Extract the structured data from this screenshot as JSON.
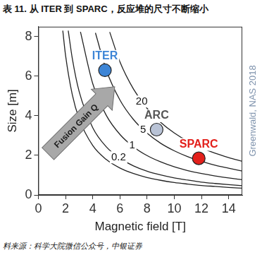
{
  "chart_data": {
    "type": "line",
    "title": "表 11. 从 ITER 到 SPARC，反应堆的尺寸不断缩小",
    "source": "料来源：科学大院微信公众号，中银证券",
    "credit": "Greenwald, NAS 2018",
    "x_label": "Magnetic field [T]",
    "y_label": "Size [m]",
    "xlim": [
      0,
      15
    ],
    "xticks": [
      0,
      2,
      4,
      6,
      8,
      10,
      12,
      14
    ],
    "ylim": [
      0,
      8.5
    ],
    "yticks": [
      0,
      2,
      4,
      6,
      8
    ],
    "grid": false,
    "series": [
      {
        "type": "scatter",
        "color": "#3d85d6",
        "x": [
          4.9
        ],
        "values": [
          6.3
        ]
      },
      {
        "type": "scatter",
        "color": "#b9c3d6",
        "x": [
          8.7
        ],
        "values": [
          3.3
        ]
      },
      {
        "type": "scatter",
        "color": "#e3201b",
        "x": [
          11.8
        ],
        "values": [
          1.85
        ]
      },
      {
        "type": "line",
        "color": "#222222",
        "x": [
          1.8,
          2,
          2.5,
          3,
          4,
          5,
          6,
          7,
          8,
          9,
          10,
          11,
          12,
          13,
          14,
          15
        ],
        "values": [
          8.3,
          7.07,
          5.06,
          3.85,
          2.5,
          1.79,
          1.36,
          1.08,
          0.88,
          0.74,
          0.63,
          0.55,
          0.48,
          0.43,
          0.38,
          0.34
        ]
      },
      {
        "type": "line",
        "color": "#222222",
        "x": [
          2.2,
          2.5,
          3,
          4,
          5,
          6,
          7,
          8,
          9,
          10,
          11,
          12,
          13,
          14,
          15
        ],
        "values": [
          8.3,
          6.89,
          5.23,
          3.4,
          2.43,
          1.85,
          1.47,
          1.2,
          1.01,
          0.86,
          0.75,
          0.65,
          0.58,
          0.52,
          0.47
        ]
      },
      {
        "type": "line",
        "color": "#222222",
        "x": [
          3.1,
          4,
          5,
          6,
          7,
          8,
          9,
          10,
          11,
          12,
          13,
          14,
          15
        ],
        "values": [
          8.24,
          5.63,
          4.02,
          3.06,
          2.43,
          1.99,
          1.67,
          1.42,
          1.23,
          1.08,
          0.96,
          0.86,
          0.77
        ]
      },
      {
        "type": "line",
        "color": "#222222",
        "x": [
          4.2,
          5,
          6,
          7,
          8,
          9,
          10,
          11,
          12,
          13,
          14,
          15
        ],
        "values": [
          8.19,
          6.31,
          4.8,
          3.81,
          3.12,
          2.61,
          2.23,
          1.93,
          1.7,
          1.5,
          1.35,
          1.21
        ]
      },
      {
        "type": "line",
        "color": "#222222",
        "x": [
          5.25,
          6,
          7,
          8,
          9,
          10,
          11,
          12,
          13,
          14,
          15
        ],
        "values": [
          8.23,
          6.73,
          5.35,
          4.37,
          3.67,
          3.13,
          2.71,
          2.38,
          2.11,
          1.89,
          1.7
        ]
      }
    ],
    "annotations": [
      {
        "text": "0.2",
        "x": 5.9,
        "y": 1.9,
        "color": "#111111"
      },
      {
        "text": "1",
        "x": 6.9,
        "y": 2.5,
        "color": "#111111"
      },
      {
        "text": "5",
        "x": 7.7,
        "y": 3.3,
        "color": "#111111"
      },
      {
        "text": "20",
        "x": 7.6,
        "y": 4.72,
        "color": "#111111"
      },
      {
        "text": "ITER",
        "x": 4.9,
        "y": 7.0,
        "color": "#3d85d6"
      },
      {
        "text": "ARC",
        "x": 8.7,
        "y": 4.0,
        "color": "#555555"
      },
      {
        "text": "SPARC",
        "x": 11.8,
        "y": 2.55,
        "color": "#e3201b"
      }
    ],
    "gain_arrow": {
      "text": "Fusion Gain Q",
      "x": 3.2,
      "y": 3.8
    }
  }
}
